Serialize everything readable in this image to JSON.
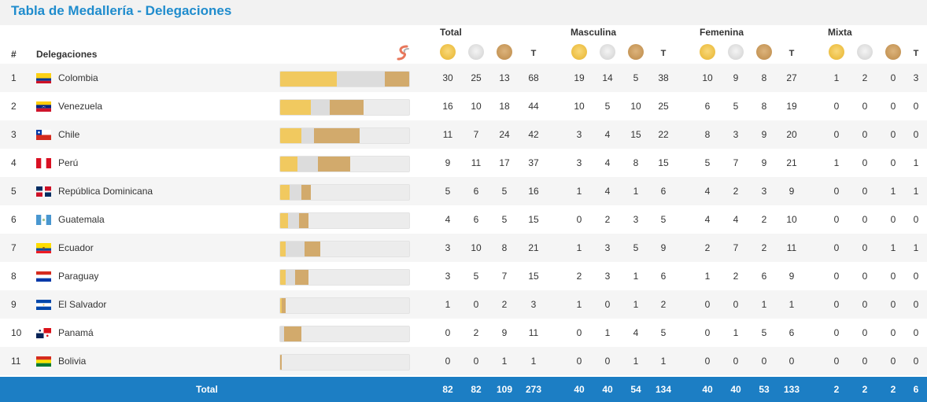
{
  "title": "Tabla de Medallería - Delegaciones",
  "header": {
    "rank_label": "#",
    "delegations_label": "Delegaciones",
    "groups": [
      "Total",
      "Masculina",
      "Femenina",
      "Mixta"
    ],
    "t_label": "T"
  },
  "colors": {
    "gold": "#f1c95f",
    "silver": "#dcdcdc",
    "bronze": "#d2aa6c",
    "title": "#1f8ccd",
    "footer": "#1c7ec4"
  },
  "rows": [
    {
      "rank": "1",
      "country": "Colombia",
      "flag": "colombia",
      "values": [
        30,
        25,
        13,
        68,
        19,
        14,
        5,
        38,
        10,
        9,
        8,
        27,
        1,
        2,
        0,
        3
      ]
    },
    {
      "rank": "2",
      "country": "Venezuela",
      "flag": "venezuela",
      "values": [
        16,
        10,
        18,
        44,
        10,
        5,
        10,
        25,
        6,
        5,
        8,
        19,
        0,
        0,
        0,
        0
      ]
    },
    {
      "rank": "3",
      "country": "Chile",
      "flag": "chile",
      "values": [
        11,
        7,
        24,
        42,
        3,
        4,
        15,
        22,
        8,
        3,
        9,
        20,
        0,
        0,
        0,
        0
      ]
    },
    {
      "rank": "4",
      "country": "Perú",
      "flag": "peru",
      "values": [
        9,
        11,
        17,
        37,
        3,
        4,
        8,
        15,
        5,
        7,
        9,
        21,
        1,
        0,
        0,
        1
      ]
    },
    {
      "rank": "5",
      "country": "República Dominicana",
      "flag": "dominicana",
      "values": [
        5,
        6,
        5,
        16,
        1,
        4,
        1,
        6,
        4,
        2,
        3,
        9,
        0,
        0,
        1,
        1
      ]
    },
    {
      "rank": "6",
      "country": "Guatemala",
      "flag": "guatemala",
      "values": [
        4,
        6,
        5,
        15,
        0,
        2,
        3,
        5,
        4,
        4,
        2,
        10,
        0,
        0,
        0,
        0
      ]
    },
    {
      "rank": "7",
      "country": "Ecuador",
      "flag": "ecuador",
      "values": [
        3,
        10,
        8,
        21,
        1,
        3,
        5,
        9,
        2,
        7,
        2,
        11,
        0,
        0,
        1,
        1
      ]
    },
    {
      "rank": "8",
      "country": "Paraguay",
      "flag": "paraguay",
      "values": [
        3,
        5,
        7,
        15,
        2,
        3,
        1,
        6,
        1,
        2,
        6,
        9,
        0,
        0,
        0,
        0
      ]
    },
    {
      "rank": "9",
      "country": "El Salvador",
      "flag": "elsalvador",
      "values": [
        1,
        0,
        2,
        3,
        1,
        0,
        1,
        2,
        0,
        0,
        1,
        1,
        0,
        0,
        0,
        0
      ]
    },
    {
      "rank": "10",
      "country": "Panamá",
      "flag": "panama",
      "values": [
        0,
        2,
        9,
        11,
        0,
        1,
        4,
        5,
        0,
        1,
        5,
        6,
        0,
        0,
        0,
        0
      ]
    },
    {
      "rank": "11",
      "country": "Bolivia",
      "flag": "bolivia",
      "values": [
        0,
        0,
        1,
        1,
        0,
        0,
        1,
        1,
        0,
        0,
        0,
        0,
        0,
        0,
        0,
        0
      ]
    }
  ],
  "total": {
    "label": "Total",
    "values": [
      82,
      82,
      109,
      273,
      40,
      40,
      54,
      134,
      40,
      40,
      53,
      133,
      2,
      2,
      2,
      6
    ]
  }
}
